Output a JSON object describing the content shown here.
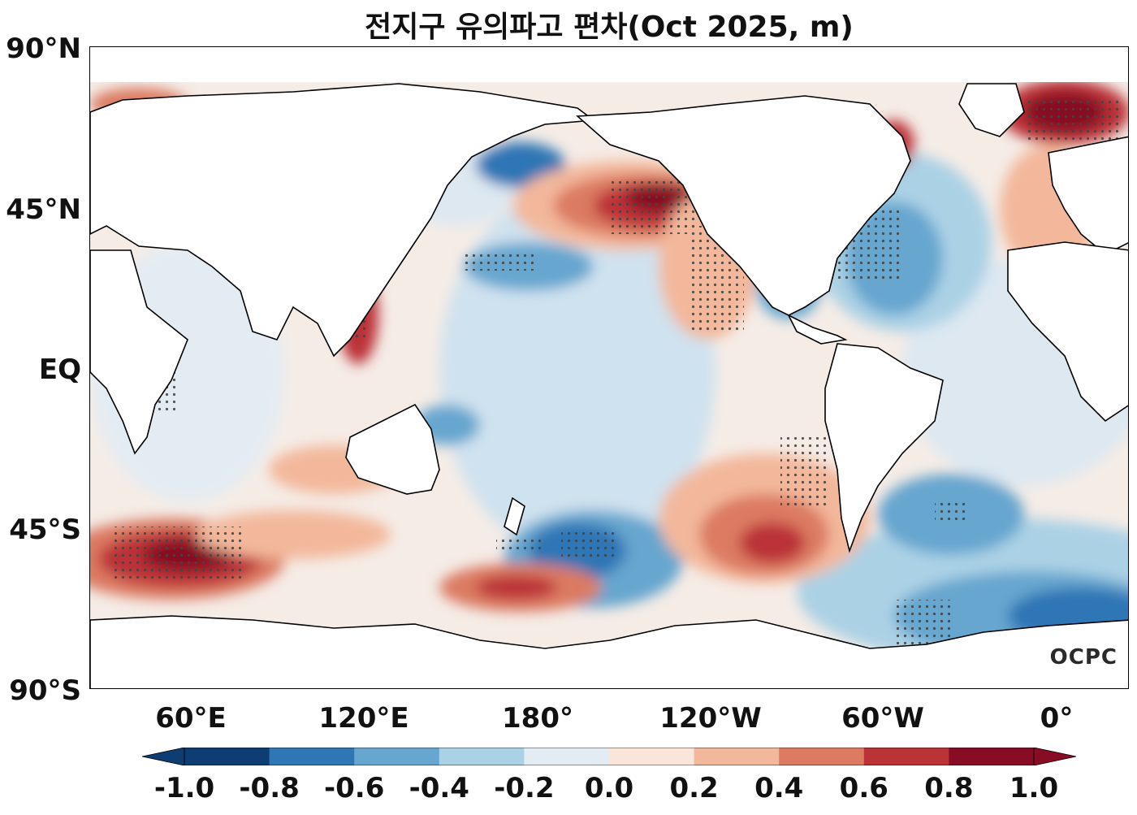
{
  "title": "전지구 유의파고 편차(Oct 2025, m)",
  "logo": "OCPC",
  "y_ticks": [
    "90°N",
    "45°N",
    "EQ",
    "45°S",
    "90°S"
  ],
  "x_ticks": [
    "60°E",
    "120°E",
    "180°",
    "120°W",
    "60°W",
    "0°"
  ],
  "colorbar": {
    "ticks": [
      "-1.0",
      "-0.8",
      "-0.6",
      "-0.4",
      "-0.2",
      "0.0",
      "0.2",
      "0.4",
      "0.6",
      "0.8",
      "1.0"
    ],
    "colors": [
      "#0d3d73",
      "#2f76b5",
      "#66a6cf",
      "#abd1e5",
      "#e4ecf3",
      "#f9e5da",
      "#f3b89b",
      "#dc7a62",
      "#bb3237",
      "#870c24"
    ]
  },
  "map": {
    "projection": "PlateCarree, central longitude 200°E",
    "lon_range": [
      25,
      385
    ],
    "lat_range": [
      -90,
      90
    ],
    "field": "significant wave height anomaly",
    "stippling": "statistical significance dots"
  }
}
